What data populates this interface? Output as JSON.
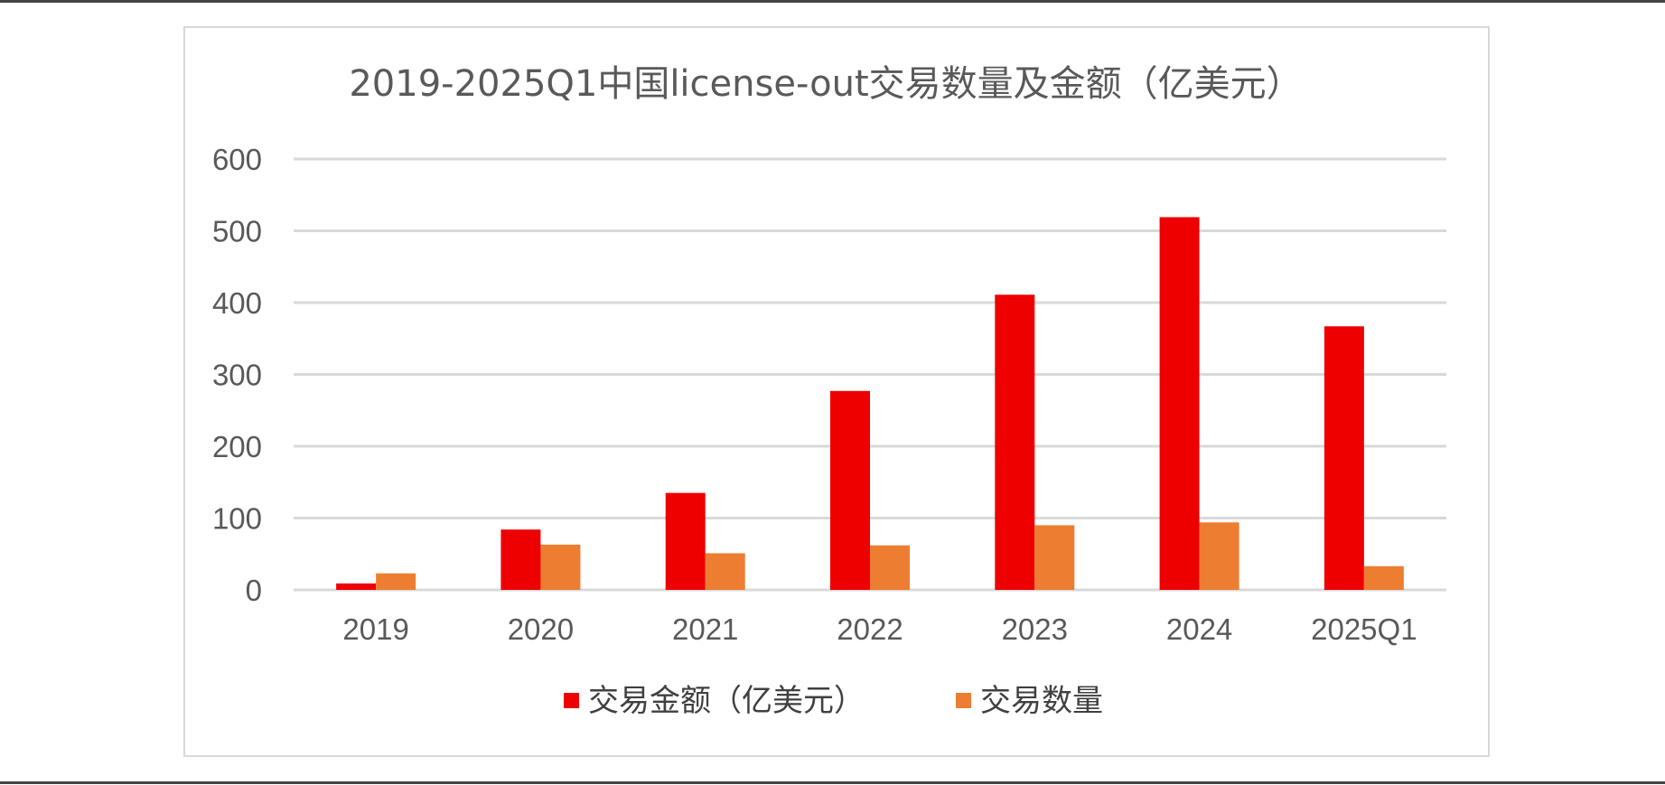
{
  "chart_data": {
    "type": "bar",
    "title": "2019-2025Q1中国license-out交易数量及金额（亿美元）",
    "categories": [
      "2019",
      "2020",
      "2021",
      "2022",
      "2023",
      "2024",
      "2025Q1"
    ],
    "series": [
      {
        "name": "交易金额（亿美元）",
        "color": "#ee0000",
        "values": [
          9,
          84,
          135,
          277,
          411,
          519,
          367
        ]
      },
      {
        "name": "交易数量",
        "color": "#ed7d31",
        "values": [
          23,
          63,
          51,
          62,
          90,
          94,
          33
        ]
      }
    ],
    "ylim": [
      0,
      600
    ],
    "yticks": [
      0,
      100,
      200,
      300,
      400,
      500,
      600
    ],
    "xlabel": "",
    "ylabel": "",
    "grid": true,
    "legend_position": "bottom"
  }
}
